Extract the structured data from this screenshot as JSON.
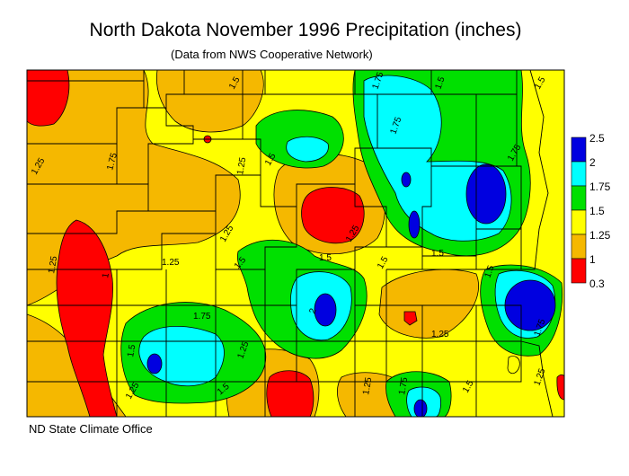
{
  "title": "North Dakota November 1996 Precipitation (inches)",
  "subtitle": "(Data from NWS Cooperative Network)",
  "credit": "ND State Climate Office",
  "legend": {
    "bins": [
      {
        "label": "2.5",
        "color": "#0000e0"
      },
      {
        "label": "2",
        "color": "#00ffff"
      },
      {
        "label": "1.75",
        "color": "#00e000"
      },
      {
        "label": "1.5",
        "color": "#ffff00"
      },
      {
        "label": "1.25",
        "color": "#f5b800"
      },
      {
        "label": "1",
        "color": "#ff0000"
      },
      {
        "label": "0.3",
        "color": null
      }
    ]
  },
  "contour_labels": [
    "1.25",
    "1.5",
    "1.75",
    "1.25",
    "1.5",
    "1.25",
    "1.5",
    "1.75",
    "1.25",
    "1.5",
    "1.75",
    "1",
    "1.25",
    "1.5",
    "1.75",
    "1.5",
    "2",
    "1.25",
    "1.5",
    "1.25",
    "1.75",
    "1.5",
    "1.25",
    "1.5",
    "1.25",
    "1.5",
    "1.75",
    "1.25",
    "1.5",
    "1.5",
    "1.25",
    "1.75"
  ]
}
